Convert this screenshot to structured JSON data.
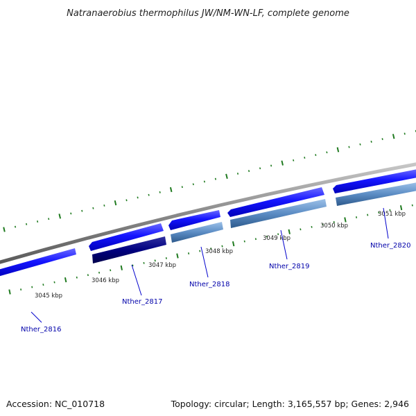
{
  "title": "Natranaerobius thermophilus JW/NM-WN-LF, complete genome",
  "footer": {
    "accession": "Accession: NC_010718",
    "topology": "Topology: circular; Length: 3,165,557 bp; Genes: 2,946"
  },
  "ticks": [
    {
      "label": "3045 kbp"
    },
    {
      "label": "3046 kbp"
    },
    {
      "label": "3047 kbp"
    },
    {
      "label": "3048 kbp"
    },
    {
      "label": "3049 kbp"
    },
    {
      "label": "3050 kbp"
    },
    {
      "label": "3051 kbp"
    }
  ],
  "genes": [
    {
      "name": "Nther_2816"
    },
    {
      "name": "Nther_2817"
    },
    {
      "name": "Nther_2818"
    },
    {
      "name": "Nther_2819"
    },
    {
      "name": "Nther_2820"
    }
  ],
  "colors": {
    "backbone": "#8a8a8a",
    "cds": "#1a1aff",
    "cds_dark": "#000080",
    "cds_steel": "#4f7fb8",
    "ticks": "#1f7a1f",
    "gene_label": "#0000aa"
  }
}
